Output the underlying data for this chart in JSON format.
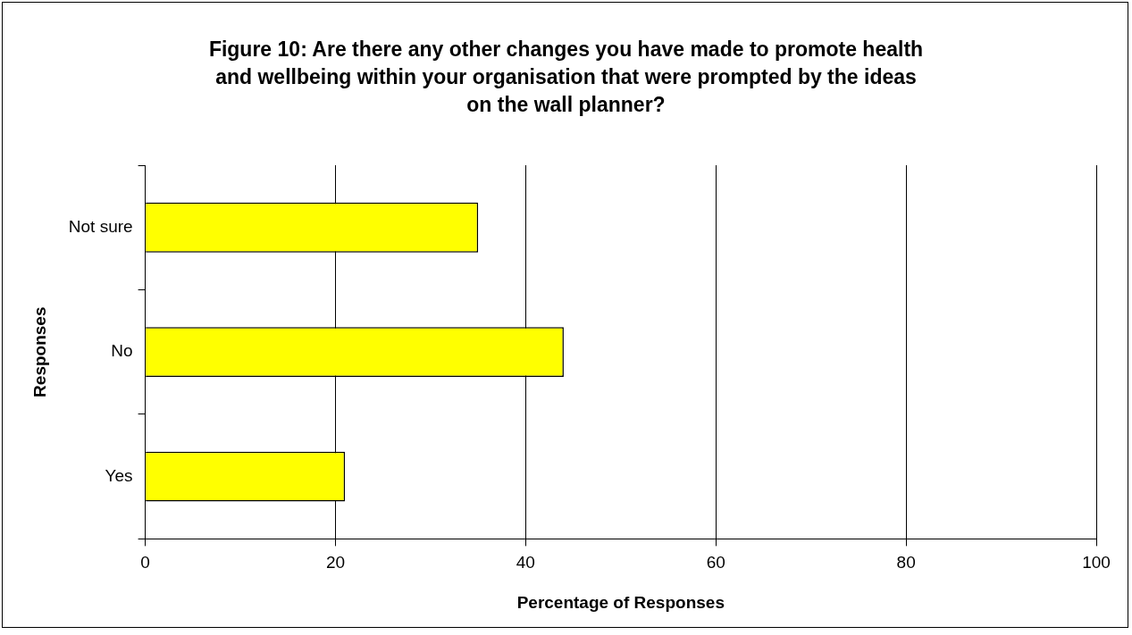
{
  "chart_data": {
    "type": "bar",
    "orientation": "horizontal",
    "title": "Figure 10: Are there any other changes you have made to promote health and wellbeing within your organisation that were prompted by the ideas on the wall planner?",
    "xlabel": "Percentage of Responses",
    "ylabel": "Responses",
    "categories": [
      "Not sure",
      "No",
      "Yes"
    ],
    "values": [
      35,
      44,
      21
    ],
    "color": "#ffff00",
    "xlim": [
      0,
      100
    ],
    "xticks": [
      0,
      20,
      40,
      60,
      80,
      100
    ],
    "grid": "x"
  }
}
